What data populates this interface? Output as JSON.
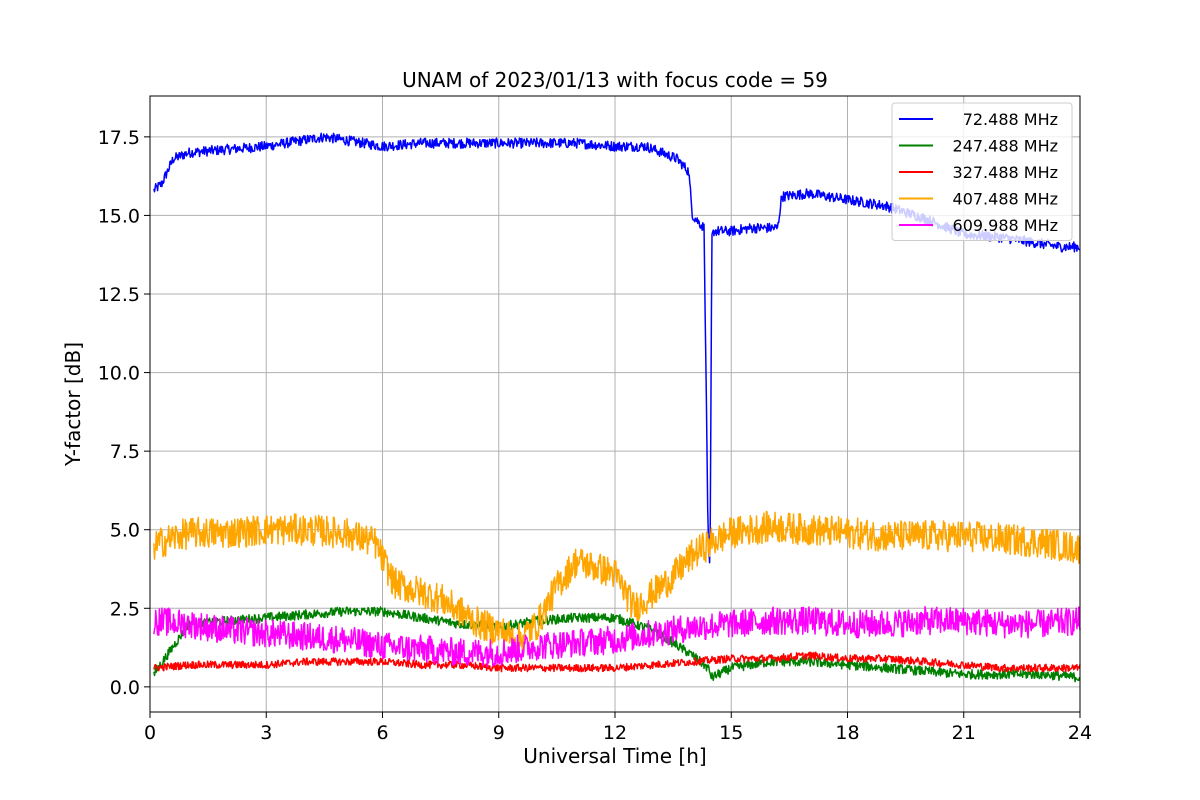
{
  "chart_data": {
    "type": "line",
    "title": "UNAM of 2023/01/13 with focus code = 59",
    "xlabel": "Universal Time [h]",
    "ylabel": "Y-factor [dB]",
    "xlim": [
      0,
      24
    ],
    "ylim": [
      -0.8,
      18.8
    ],
    "xticks": [
      0,
      3,
      6,
      9,
      12,
      15,
      18,
      21,
      24
    ],
    "xtick_labels": [
      "0",
      "3",
      "6",
      "9",
      "12",
      "15",
      "18",
      "21",
      "24"
    ],
    "yticks": [
      0.0,
      2.5,
      5.0,
      7.5,
      10.0,
      12.5,
      15.0,
      17.5
    ],
    "ytick_labels": [
      "0.0",
      "2.5",
      "5.0",
      "7.5",
      "10.0",
      "12.5",
      "15.0",
      "17.5"
    ],
    "grid": true,
    "legend_position": "top-right",
    "series": [
      {
        "name": "72.488 MHz",
        "color": "#0000ff",
        "noise": 0.16,
        "x": [
          0.1,
          0.3,
          0.6,
          1.0,
          2.0,
          3.0,
          4.0,
          4.5,
          5.0,
          6.0,
          7.0,
          8.0,
          9.0,
          10.0,
          11.0,
          12.0,
          12.8,
          13.2,
          13.6,
          13.9,
          14.0,
          14.3,
          14.4,
          14.45,
          14.5,
          14.55,
          14.6,
          15.0,
          15.5,
          16.2,
          16.3,
          17.0,
          18.0,
          19.0,
          20.0,
          21.0,
          22.0,
          23.0,
          23.5,
          24.0
        ],
        "y": [
          15.8,
          16.0,
          16.8,
          17.0,
          17.1,
          17.2,
          17.4,
          17.5,
          17.4,
          17.2,
          17.3,
          17.3,
          17.3,
          17.3,
          17.3,
          17.2,
          17.2,
          17.0,
          16.8,
          16.4,
          15.0,
          14.6,
          5.0,
          3.5,
          14.3,
          14.5,
          14.5,
          14.5,
          14.6,
          14.6,
          15.6,
          15.7,
          15.5,
          15.3,
          14.9,
          14.4,
          14.3,
          14.1,
          14.0,
          14.0
        ]
      },
      {
        "name": "247.488 MHz",
        "color": "#008000",
        "noise": 0.15,
        "x": [
          0.1,
          1.0,
          2.0,
          3.0,
          4.0,
          5.0,
          6.0,
          7.0,
          8.0,
          9.0,
          10.0,
          11.0,
          12.0,
          13.0,
          14.0,
          14.4,
          14.5,
          15.0,
          16.0,
          17.0,
          18.0,
          19.0,
          20.0,
          21.0,
          22.0,
          23.0,
          24.0
        ],
        "y": [
          0.4,
          2.0,
          2.1,
          2.2,
          2.3,
          2.4,
          2.4,
          2.2,
          2.0,
          1.9,
          2.1,
          2.2,
          2.2,
          1.8,
          1.0,
          0.6,
          0.3,
          0.6,
          0.8,
          0.8,
          0.7,
          0.6,
          0.5,
          0.4,
          0.4,
          0.4,
          0.3
        ]
      },
      {
        "name": "327.488 MHz",
        "color": "#ff0000",
        "noise": 0.12,
        "x": [
          0.1,
          1.0,
          2.0,
          3.0,
          4.0,
          5.0,
          6.0,
          7.0,
          8.0,
          9.0,
          10.0,
          11.0,
          12.0,
          13.0,
          14.0,
          15.0,
          16.0,
          17.0,
          18.0,
          19.0,
          20.0,
          21.0,
          22.0,
          23.0,
          24.0
        ],
        "y": [
          0.6,
          0.7,
          0.7,
          0.7,
          0.8,
          0.8,
          0.8,
          0.7,
          0.7,
          0.6,
          0.6,
          0.6,
          0.6,
          0.7,
          0.8,
          0.9,
          0.9,
          1.0,
          0.9,
          0.9,
          0.8,
          0.7,
          0.6,
          0.6,
          0.6
        ]
      },
      {
        "name": "407.488 MHz",
        "color": "#ffa500",
        "noise": 0.5,
        "x": [
          0.1,
          0.5,
          1.0,
          2.0,
          3.0,
          4.0,
          5.0,
          5.8,
          6.3,
          7.0,
          7.5,
          8.0,
          8.5,
          9.0,
          9.5,
          10.0,
          10.5,
          11.0,
          12.0,
          12.5,
          13.0,
          13.5,
          14.0,
          14.5,
          15.0,
          16.0,
          17.0,
          18.0,
          19.0,
          20.0,
          21.0,
          22.0,
          23.0,
          24.0
        ],
        "y": [
          4.5,
          4.7,
          4.9,
          4.9,
          5.0,
          5.0,
          4.9,
          4.6,
          3.3,
          3.0,
          2.8,
          2.4,
          2.0,
          1.8,
          1.5,
          2.0,
          3.2,
          4.0,
          3.6,
          2.5,
          3.0,
          3.5,
          4.2,
          4.6,
          4.9,
          5.1,
          5.0,
          4.9,
          4.8,
          4.8,
          4.8,
          4.7,
          4.6,
          4.4
        ]
      },
      {
        "name": "609.988 MHz",
        "color": "#ff00ff",
        "noise": 0.45,
        "x": [
          0.1,
          1.0,
          2.0,
          3.0,
          4.0,
          5.0,
          6.0,
          7.0,
          8.0,
          9.0,
          10.0,
          11.0,
          12.0,
          13.0,
          14.0,
          15.0,
          16.0,
          17.0,
          18.0,
          19.0,
          20.0,
          21.0,
          22.0,
          23.0,
          24.0
        ],
        "y": [
          2.1,
          2.0,
          1.8,
          1.7,
          1.6,
          1.5,
          1.3,
          1.2,
          1.1,
          1.1,
          1.3,
          1.4,
          1.5,
          1.7,
          1.9,
          2.0,
          2.1,
          2.1,
          2.0,
          2.0,
          2.1,
          2.1,
          2.0,
          2.0,
          2.1
        ]
      }
    ]
  }
}
